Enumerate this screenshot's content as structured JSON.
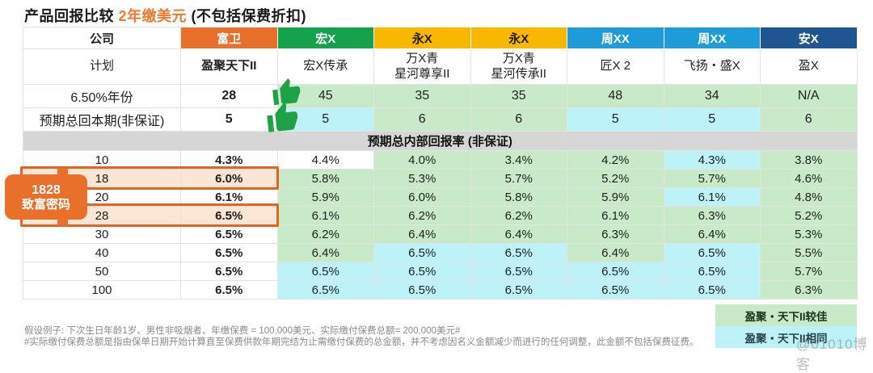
{
  "title": {
    "part1": "产品回报比较 ",
    "highlight": "2年缴美元 ",
    "part2": "(不包括保费折扣)"
  },
  "colors": {
    "accent_orange": "#E8702A",
    "highlight_border": "#E2641E",
    "highlight_row_bg": "#FBE5D4",
    "green_cell_bg": "#C9EAC9",
    "cyan_cell_bg": "#BDF2F8",
    "green_text": "#20783A",
    "section_gray": "#D6D6D6",
    "thumb_green": "#1FA247"
  },
  "table": {
    "label_col": {
      "company": "公司",
      "plan": "计划"
    },
    "companies": [
      {
        "name": "富卫",
        "bg": "#E8702A",
        "fg": "#ffffff",
        "plan": "盈聚天下II",
        "plan_bold": true
      },
      {
        "name": "宏X",
        "bg": "#14A24A",
        "fg": "#ffffff",
        "plan": "宏X传承",
        "plan_bold": false
      },
      {
        "name": "永X",
        "bg": "#F8B800",
        "fg": "#1f1f1f",
        "plan": "万X青\n星河尊享II",
        "plan_bold": false
      },
      {
        "name": "永X",
        "bg": "#F8B800",
        "fg": "#1f1f1f",
        "plan": "万X青\n星河传承II",
        "plan_bold": false
      },
      {
        "name": "周XX",
        "bg": "#1E9CD8",
        "fg": "#ffffff",
        "plan": "匠X 2",
        "plan_bold": false
      },
      {
        "name": "周XX",
        "bg": "#1E9CD8",
        "fg": "#ffffff",
        "plan": "飞扬・盛X",
        "plan_bold": false
      },
      {
        "name": "安X",
        "bg": "#1F5590",
        "fg": "#ffffff",
        "plan": "盈X",
        "plan_bold": false
      }
    ],
    "metric_rows": [
      {
        "label": "6.50%年份",
        "cells": [
          [
            "28",
            "fwd"
          ],
          [
            "45",
            "g"
          ],
          [
            "35",
            "g"
          ],
          [
            "35",
            "g"
          ],
          [
            "48",
            "g"
          ],
          [
            "34",
            "g"
          ],
          [
            "N/A",
            "g"
          ]
        ]
      },
      {
        "label": "预期总回本期(非保证)",
        "cells": [
          [
            "5",
            "fwd"
          ],
          [
            "5",
            "c"
          ],
          [
            "6",
            "g"
          ],
          [
            "6",
            "g"
          ],
          [
            "5",
            "c"
          ],
          [
            "5",
            "c"
          ],
          [
            "6",
            "g"
          ]
        ]
      }
    ],
    "section_header": "预期总内部回报率 (非保证)",
    "irr_rows": [
      {
        "year": "10",
        "highlight": false,
        "cells": [
          [
            "4.3%",
            "fwd"
          ],
          [
            "4.4%",
            "w"
          ],
          [
            "4.0%",
            "g"
          ],
          [
            "3.4%",
            "g"
          ],
          [
            "4.2%",
            "g"
          ],
          [
            "4.3%",
            "c"
          ],
          [
            "3.8%",
            "g"
          ]
        ]
      },
      {
        "year": "18",
        "highlight": true,
        "cells": [
          [
            "6.0%",
            "fwd"
          ],
          [
            "5.8%",
            "g"
          ],
          [
            "5.3%",
            "g"
          ],
          [
            "5.7%",
            "g"
          ],
          [
            "5.2%",
            "g"
          ],
          [
            "5.7%",
            "g"
          ],
          [
            "4.6%",
            "g"
          ]
        ]
      },
      {
        "year": "20",
        "highlight": false,
        "cells": [
          [
            "6.1%",
            "fwd"
          ],
          [
            "5.9%",
            "g"
          ],
          [
            "6.0%",
            "g"
          ],
          [
            "5.8%",
            "g"
          ],
          [
            "5.9%",
            "g"
          ],
          [
            "6.1%",
            "c"
          ],
          [
            "4.8%",
            "g"
          ]
        ]
      },
      {
        "year": "28",
        "highlight": true,
        "cells": [
          [
            "6.5%",
            "fwd"
          ],
          [
            "6.1%",
            "g"
          ],
          [
            "6.2%",
            "g"
          ],
          [
            "6.2%",
            "g"
          ],
          [
            "6.1%",
            "g"
          ],
          [
            "6.3%",
            "g"
          ],
          [
            "5.2%",
            "g"
          ]
        ]
      },
      {
        "year": "30",
        "highlight": false,
        "cells": [
          [
            "6.5%",
            "fwd"
          ],
          [
            "6.2%",
            "g"
          ],
          [
            "6.4%",
            "g"
          ],
          [
            "6.4%",
            "g"
          ],
          [
            "6.3%",
            "g"
          ],
          [
            "6.4%",
            "g"
          ],
          [
            "5.3%",
            "g"
          ]
        ]
      },
      {
        "year": "40",
        "highlight": false,
        "cells": [
          [
            "6.5%",
            "fwd"
          ],
          [
            "6.4%",
            "g"
          ],
          [
            "6.5%",
            "c"
          ],
          [
            "6.5%",
            "c"
          ],
          [
            "6.4%",
            "g"
          ],
          [
            "6.5%",
            "c"
          ],
          [
            "5.5%",
            "g"
          ]
        ]
      },
      {
        "year": "50",
        "highlight": false,
        "cells": [
          [
            "6.5%",
            "fwd"
          ],
          [
            "6.5%",
            "c"
          ],
          [
            "6.5%",
            "c"
          ],
          [
            "6.5%",
            "c"
          ],
          [
            "6.5%",
            "c"
          ],
          [
            "6.5%",
            "c"
          ],
          [
            "5.7%",
            "g"
          ]
        ]
      },
      {
        "year": "100",
        "highlight": false,
        "cells": [
          [
            "6.5%",
            "fwd"
          ],
          [
            "6.5%",
            "c"
          ],
          [
            "6.5%",
            "c"
          ],
          [
            "6.5%",
            "c"
          ],
          [
            "6.5%",
            "c"
          ],
          [
            "6.5%",
            "c"
          ],
          [
            "6.3%",
            "g"
          ]
        ]
      }
    ]
  },
  "badge": {
    "line1": "1828",
    "line2": "致富密码"
  },
  "thumbs": [
    "thumbs-up-icon",
    "thumbs-up-icon"
  ],
  "notes": [
    "假设例子: 下次生日年龄1岁、男性非吸烟者、年缴保费 = 100,000美元、实际缴付保费总额= 200,000美元#",
    "#实际缴付保费总额是指由保单日期开始计算直至保费供款年期完结为止需缴付保费的总金额，并不考虑因名义金额减少而进行的任何调整，此金额不包括保费征费。"
  ],
  "legend": [
    {
      "label": "盈聚・天下II较佳",
      "type": "green"
    },
    {
      "label": "盈聚・天下II相同",
      "type": "cyan"
    }
  ],
  "watermark": "@01010博客"
}
